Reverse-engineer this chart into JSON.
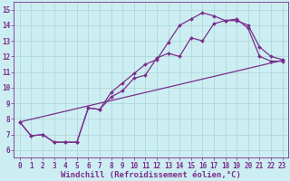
{
  "xlabel": "Windchill (Refroidissement éolien,°C)",
  "xlim": [
    -0.5,
    23.5
  ],
  "ylim": [
    5.5,
    15.5
  ],
  "xticks": [
    0,
    1,
    2,
    3,
    4,
    5,
    6,
    7,
    8,
    9,
    10,
    11,
    12,
    13,
    14,
    15,
    16,
    17,
    18,
    19,
    20,
    21,
    22,
    23
  ],
  "yticks": [
    6,
    7,
    8,
    9,
    10,
    11,
    12,
    13,
    14,
    15
  ],
  "line1_x": [
    0,
    1,
    2,
    3,
    4,
    5,
    6,
    7,
    8,
    9,
    10,
    11,
    12,
    13,
    14,
    15,
    16,
    17,
    18,
    19,
    20,
    21,
    22,
    23
  ],
  "line1_y": [
    7.8,
    6.9,
    7.0,
    6.5,
    6.5,
    6.5,
    8.7,
    8.6,
    9.7,
    10.3,
    10.9,
    11.5,
    11.8,
    12.9,
    14.0,
    14.4,
    14.8,
    14.6,
    14.3,
    14.3,
    14.0,
    12.6,
    12.0,
    11.8
  ],
  "line2_x": [
    0,
    1,
    2,
    3,
    4,
    5,
    6,
    7,
    8,
    9,
    10,
    11,
    12,
    13,
    14,
    15,
    16,
    17,
    18,
    19,
    20,
    21,
    22,
    23
  ],
  "line2_y": [
    7.8,
    6.9,
    7.0,
    6.5,
    6.5,
    6.5,
    8.7,
    8.6,
    9.4,
    9.8,
    10.6,
    10.8,
    11.9,
    12.2,
    12.0,
    13.2,
    13.0,
    14.1,
    14.3,
    14.4,
    13.8,
    12.0,
    11.7,
    11.7
  ],
  "line3_x": [
    0,
    23
  ],
  "line3_y": [
    7.8,
    11.75
  ],
  "line_color": "#7b2d8b",
  "bg_color": "#cceef2",
  "grid_color": "#aad4d8",
  "marker": "D",
  "marker_size": 2,
  "line_width": 0.9,
  "tick_fontsize": 5.5,
  "xlabel_fontsize": 6.5
}
